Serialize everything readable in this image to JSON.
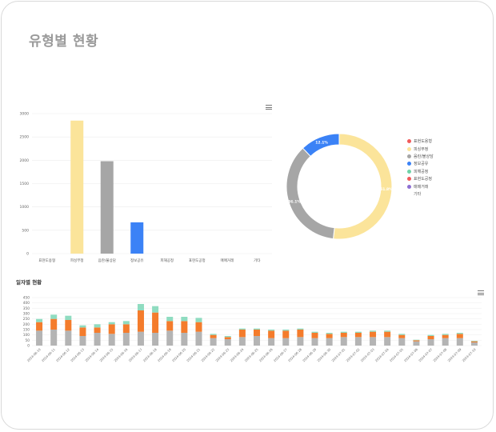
{
  "page": {
    "title": "유형별 현황"
  },
  "type_bar": {
    "menu_icon": "hamburger-menu-icon",
    "chart_data": {
      "type": "bar",
      "categories": [
        "표현도용형",
        "피싱부정",
        "음란/불상담",
        "정보공유",
        "피해공정",
        "표현도공정",
        "매매거래",
        "기타"
      ],
      "values": [
        0,
        2850,
        1980,
        670,
        0,
        0,
        0,
        0
      ],
      "colors": [
        "#f15b5b",
        "#fbe49a",
        "#a6a6a6",
        "#3b82f6",
        "#6fd3a8",
        "#f15b5b",
        "#8e6fd3",
        "#cccccc"
      ],
      "yticks": [
        0,
        500,
        1000,
        1500,
        2000,
        2500,
        3000
      ],
      "ylim": [
        0,
        3000
      ]
    }
  },
  "type_donut": {
    "chart_data": {
      "type": "pie",
      "labels": [
        "피싱부정",
        "음란/불상담",
        "정보공유"
      ],
      "values": [
        51.8,
        36.1,
        12.1
      ],
      "value_labels": [
        "51.8%",
        "36.1%",
        "12.1%"
      ],
      "colors": [
        "#fbe49a",
        "#a6a6a6",
        "#3b82f6"
      ]
    },
    "legend": [
      {
        "label": "표현도용형",
        "color": "#f15b5b"
      },
      {
        "label": "피싱부정",
        "color": "#fbe49a"
      },
      {
        "label": "음란/불상담",
        "color": "#a6a6a6"
      },
      {
        "label": "정보공유",
        "color": "#3b82f6"
      },
      {
        "label": "피해공정",
        "color": "#6fd3a8"
      },
      {
        "label": "표현도공정",
        "color": "#f15b5b"
      },
      {
        "label": "매매거래",
        "color": "#8e6fd3"
      },
      {
        "label": "기타",
        "color": ""
      }
    ]
  },
  "daily": {
    "title": "일자별 현황",
    "menu_icon": "hamburger-menu-icon",
    "chart_data": {
      "type": "bar",
      "stacked": true,
      "yticks": [
        0,
        50,
        100,
        150,
        200,
        250,
        300,
        350,
        400,
        450
      ],
      "ylim": [
        0,
        450
      ],
      "categories": [
        "2024-06-10",
        "2024-06-11",
        "2024-06-12",
        "2024-06-13",
        "2024-06-14",
        "2024-06-15",
        "2024-06-16",
        "2024-06-17",
        "2024-06-18",
        "2024-06-19",
        "2024-06-20",
        "2024-06-21",
        "2024-06-22",
        "2024-06-23",
        "2024-06-24",
        "2024-06-25",
        "2024-06-26",
        "2024-06-27",
        "2024-06-28",
        "2024-06-29",
        "2024-06-30",
        "2024-07-01",
        "2024-07-02",
        "2024-07-03",
        "2024-07-04",
        "2024-07-05",
        "2024-07-06",
        "2024-07-07",
        "2024-07-08",
        "2024-07-09",
        "2024-07-10"
      ],
      "series": [
        {
          "color": "#b4b4b4",
          "values": [
            140,
            150,
            140,
            90,
            120,
            110,
            120,
            130,
            120,
            140,
            120,
            130,
            70,
            60,
            80,
            90,
            70,
            70,
            80,
            70,
            70,
            80,
            80,
            80,
            80,
            70,
            40,
            60,
            70,
            70,
            30
          ]
        },
        {
          "color": "#f47c2c",
          "values": [
            80,
            100,
            100,
            80,
            50,
            90,
            80,
            200,
            190,
            90,
            110,
            90,
            30,
            20,
            70,
            60,
            70,
            70,
            70,
            50,
            40,
            40,
            40,
            50,
            50,
            30,
            10,
            30,
            30,
            40,
            10
          ]
        },
        {
          "color": "#8fdcc0",
          "values": [
            30,
            40,
            40,
            20,
            30,
            20,
            30,
            60,
            60,
            40,
            40,
            40,
            10,
            10,
            10,
            10,
            10,
            10,
            10,
            10,
            10,
            10,
            10,
            10,
            10,
            10,
            5,
            10,
            10,
            10,
            5
          ]
        }
      ]
    }
  }
}
